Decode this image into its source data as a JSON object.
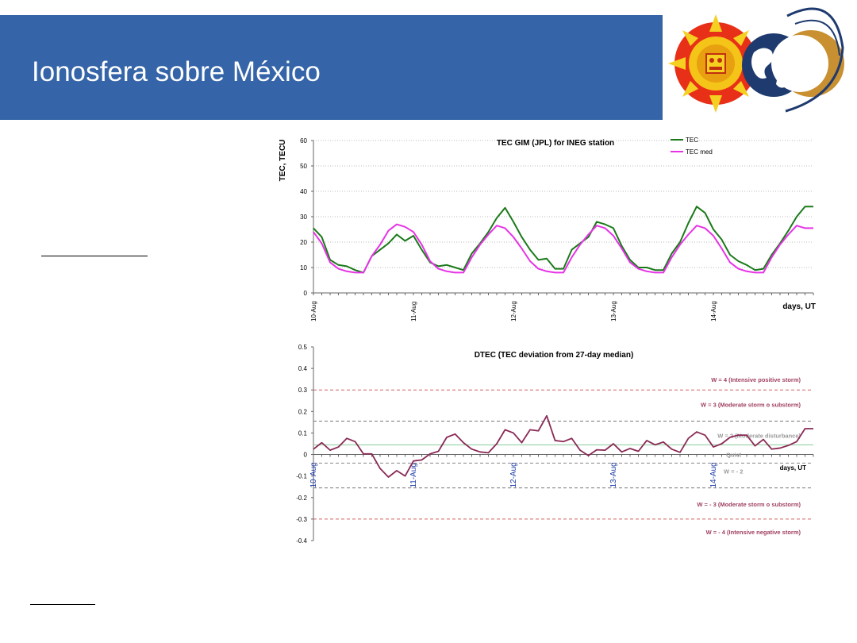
{
  "slide": {
    "title": "Ionosfera sobre México"
  },
  "colors": {
    "banner": "#3565a8",
    "tec": "#1a7a1a",
    "tec_med": "#e633e6",
    "dtec": "#8a2a55",
    "storm_line": "#d06060",
    "moderate_line": "#888888",
    "quiet_line": "#88cc99"
  },
  "chart_data": [
    {
      "type": "line",
      "title": "TEC GIM (JPL) for INEG station",
      "ylabel": "TEC, TECU",
      "xlabel": "days, UT",
      "ylim": [
        0,
        60
      ],
      "yticks": [
        0,
        10,
        20,
        30,
        40,
        50,
        60
      ],
      "grid": true,
      "legend": "top-right",
      "x_tick_labels": [
        "10-Aug",
        "11-Aug",
        "12-Aug",
        "13-Aug",
        "14-Aug"
      ],
      "x_tick_positions": [
        0,
        1,
        2,
        3,
        4
      ],
      "x_range": [
        0,
        5
      ],
      "series": [
        {
          "name": "TEC",
          "color": "#1a7a1a",
          "x": [
            0,
            0.0833,
            0.1667,
            0.25,
            0.3333,
            0.4167,
            0.5,
            0.5833,
            0.6667,
            0.75,
            0.8333,
            0.9167,
            1.0,
            1.0833,
            1.1667,
            1.25,
            1.3333,
            1.4167,
            1.5,
            1.5833,
            1.6667,
            1.75,
            1.8333,
            1.9167,
            2.0,
            2.0833,
            2.1667,
            2.25,
            2.3333,
            2.4167,
            2.5,
            2.5833,
            2.6667,
            2.75,
            2.8333,
            2.9167,
            3.0,
            3.0833,
            3.1667,
            3.25,
            3.3333,
            3.4167,
            3.5,
            3.5833,
            3.6667,
            3.75,
            3.8333,
            3.9167,
            4.0,
            4.0833,
            4.1667,
            4.25,
            4.3333,
            4.4167,
            4.5,
            4.5833,
            4.6667,
            4.75,
            4.8333,
            4.9167,
            5.0
          ],
          "values": [
            25.5,
            22,
            13,
            11,
            10.5,
            9,
            8,
            14.5,
            17,
            19.5,
            23,
            20.5,
            22.5,
            17,
            12,
            10.5,
            11,
            10,
            9,
            15.5,
            19.5,
            24,
            29.5,
            33.5,
            28,
            22,
            17,
            13,
            13.5,
            9.5,
            9.5,
            17,
            19.5,
            22,
            28,
            27,
            25.5,
            18.5,
            13,
            10,
            10,
            9,
            9,
            15.5,
            20,
            27.5,
            34,
            31.5,
            25,
            21,
            15,
            12.5,
            11,
            9,
            9.5,
            15,
            19.5,
            24.5,
            30,
            34,
            34
          ]
        },
        {
          "name": "TEC med",
          "color": "#e633e6",
          "x": [
            0,
            0.0833,
            0.1667,
            0.25,
            0.3333,
            0.4167,
            0.5,
            0.5833,
            0.6667,
            0.75,
            0.8333,
            0.9167,
            1.0,
            1.0833,
            1.1667,
            1.25,
            1.3333,
            1.4167,
            1.5,
            1.5833,
            1.6667,
            1.75,
            1.8333,
            1.9167,
            2.0,
            2.0833,
            2.1667,
            2.25,
            2.3333,
            2.4167,
            2.5,
            2.5833,
            2.6667,
            2.75,
            2.8333,
            2.9167,
            3.0,
            3.0833,
            3.1667,
            3.25,
            3.3333,
            3.4167,
            3.5,
            3.5833,
            3.6667,
            3.75,
            3.8333,
            3.9167,
            4.0,
            4.0833,
            4.1667,
            4.25,
            4.3333,
            4.4167,
            4.5,
            4.5833,
            4.6667,
            4.75,
            4.8333,
            4.9167,
            5.0
          ],
          "values": [
            24,
            19.5,
            12,
            9.5,
            8.5,
            8,
            8,
            14.5,
            19,
            24.5,
            27,
            26,
            24,
            19,
            12.5,
            9.5,
            8.5,
            8,
            8,
            14,
            19,
            23,
            26.5,
            25.5,
            22,
            17.5,
            12.5,
            9.5,
            8.5,
            8,
            8,
            14,
            19,
            23,
            26.5,
            25.5,
            22.5,
            17.5,
            12,
            9.5,
            8.5,
            8,
            8,
            14,
            19,
            23,
            26.5,
            25.5,
            22.5,
            17.5,
            12,
            9.5,
            8.5,
            8,
            8,
            14,
            19,
            23,
            26.5,
            25.5,
            25.5
          ]
        }
      ]
    },
    {
      "type": "line",
      "title": "DTEC (TEC deviation from 27-day median)",
      "xlabel": "days, UT",
      "ylim": [
        -0.4,
        0.5
      ],
      "yticks": [
        -0.4,
        -0.3,
        -0.2,
        -0.1,
        0,
        0.1,
        0.2,
        0.3,
        0.4,
        0.5
      ],
      "x_tick_labels": [
        "10-Aug",
        "11-Aug",
        "12-Aug",
        "13-Aug",
        "14-Aug"
      ],
      "x_tick_positions": [
        0,
        1,
        2,
        3,
        4
      ],
      "x_range": [
        0,
        5
      ],
      "series": [
        {
          "name": "DTEC",
          "color": "#8a2a55",
          "x": [
            0,
            0.0833,
            0.1667,
            0.25,
            0.3333,
            0.4167,
            0.5,
            0.5833,
            0.6667,
            0.75,
            0.8333,
            0.9167,
            1.0,
            1.0833,
            1.1667,
            1.25,
            1.3333,
            1.4167,
            1.5,
            1.5833,
            1.6667,
            1.75,
            1.8333,
            1.9167,
            2.0,
            2.0833,
            2.1667,
            2.25,
            2.3333,
            2.4167,
            2.5,
            2.5833,
            2.6667,
            2.75,
            2.8333,
            2.9167,
            3.0,
            3.0833,
            3.1667,
            3.25,
            3.3333,
            3.4167,
            3.5,
            3.5833,
            3.6667,
            3.75,
            3.8333,
            3.9167,
            4.0,
            4.0833,
            4.1667,
            4.25,
            4.3333,
            4.4167,
            4.5,
            4.5833,
            4.6667,
            4.75,
            4.8333,
            4.9167,
            5.0
          ],
          "values": [
            0.025,
            0.055,
            0.02,
            0.035,
            0.075,
            0.06,
            0.003,
            0.003,
            -0.065,
            -0.105,
            -0.075,
            -0.1,
            -0.03,
            -0.025,
            0.003,
            0.015,
            0.08,
            0.095,
            0.055,
            0.025,
            0.012,
            0.008,
            0.05,
            0.115,
            0.1,
            0.055,
            0.115,
            0.11,
            0.18,
            0.065,
            0.06,
            0.075,
            0.02,
            -0.005,
            0.022,
            0.02,
            0.05,
            0.012,
            0.028,
            0.015,
            0.065,
            0.045,
            0.058,
            0.025,
            0.01,
            0.075,
            0.105,
            0.09,
            0.035,
            0.05,
            0.08,
            0.09,
            0.09,
            0.04,
            0.07,
            0.025,
            0.03,
            0.042,
            0.06,
            0.12,
            0.12
          ]
        }
      ],
      "reference_lines": [
        {
          "value": 0.3,
          "style": "dashed",
          "color": "#d06060",
          "label": "W = 4 (Intensive positive storm)"
        },
        {
          "value": 0.155,
          "style": "dashed",
          "color": "#777777",
          "label": "W = 3 (Moderate storm o substorm)"
        },
        {
          "value": 0.045,
          "style": "solid",
          "color": "#88cc99",
          "label": "W = 2  (Moderate disturbance)"
        },
        {
          "value": -0.04,
          "style": "dashed",
          "color": "#888888",
          "label": "Quiet"
        },
        {
          "value": -0.155,
          "style": "dashed",
          "color": "#777777",
          "label": "W = - 2"
        },
        {
          "value": -0.3,
          "style": "dashed",
          "color": "#d06060",
          "label": "W = - 3 (Moderate storm o substorm)"
        },
        {
          "value": -0.4,
          "style": "none",
          "color": "#d06060",
          "label": "W = - 4 (Intensive negative storm)"
        }
      ]
    }
  ]
}
